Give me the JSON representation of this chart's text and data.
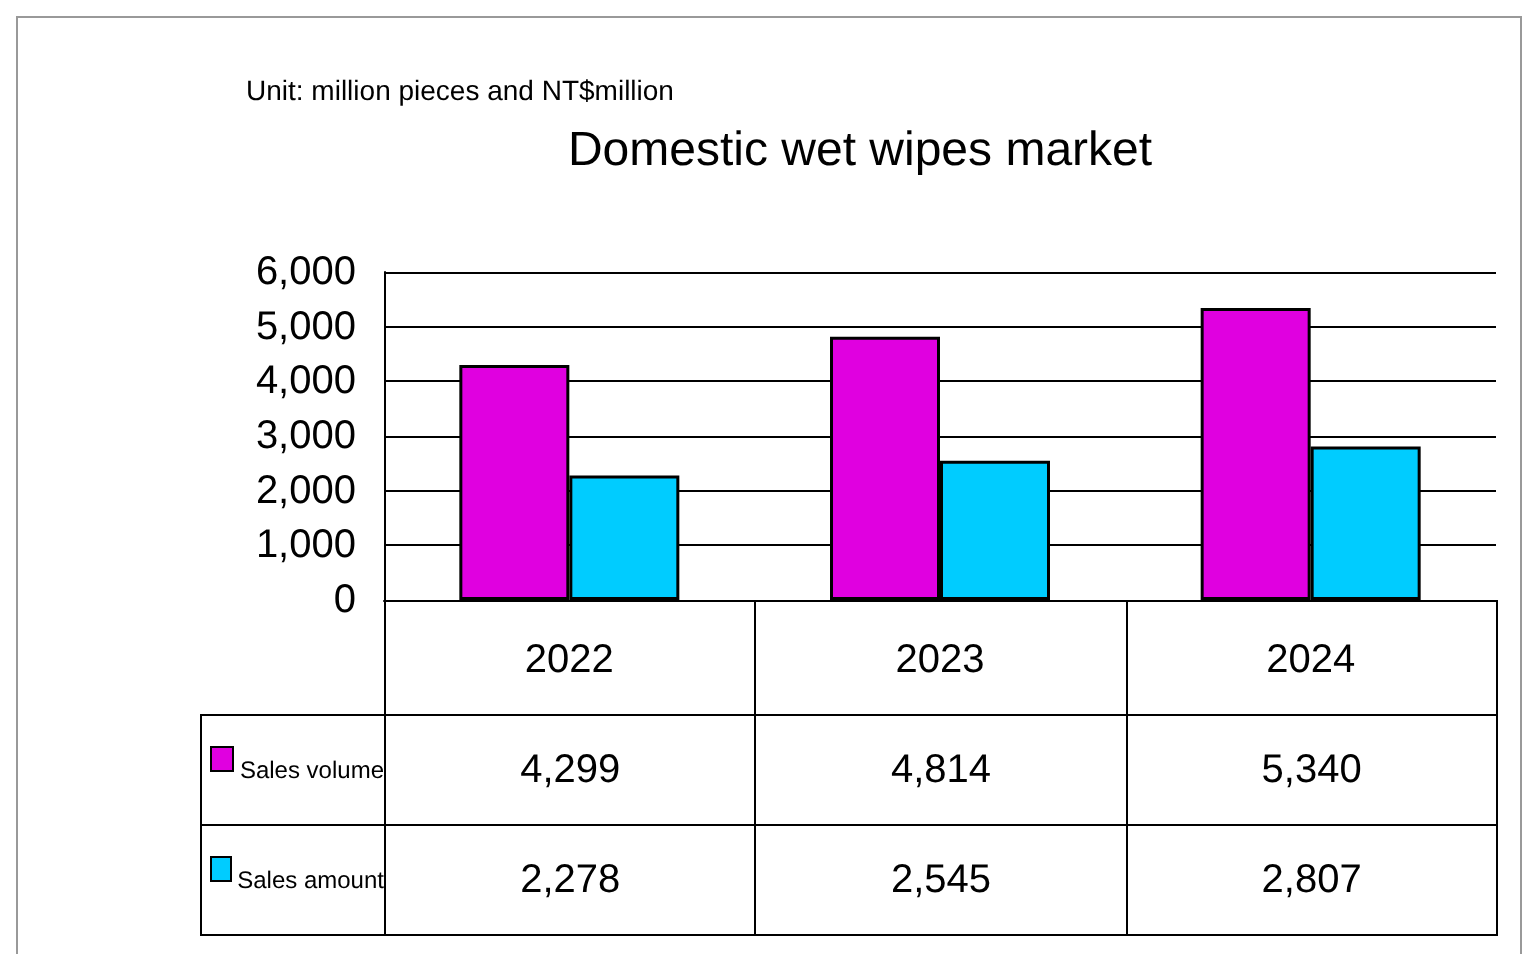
{
  "chart_data": {
    "type": "bar",
    "title": "Domestic wet wipes market",
    "subtitle": "Unit: million pieces and NT$million",
    "categories": [
      "2022",
      "2023",
      "2024"
    ],
    "series": [
      {
        "name": "Sales volume",
        "color": "#e000e0",
        "values": [
          4299,
          4814,
          5340
        ],
        "value_labels": [
          "4,299",
          "4,814",
          "5,340"
        ]
      },
      {
        "name": "Sales amount",
        "color": "#00ccff",
        "values": [
          2278,
          2545,
          2807
        ],
        "value_labels": [
          "2,278",
          "2,545",
          "2,807"
        ]
      }
    ],
    "ylim": [
      0,
      6000
    ],
    "yticks": [
      0,
      {
        "value": 1000,
        "label": "1,000"
      },
      {
        "value": 2000,
        "label": "2,000"
      },
      {
        "value": 3000,
        "label": "3,000"
      },
      {
        "value": 4000,
        "label": "4,000"
      },
      {
        "value": 5000,
        "label": "5,000"
      },
      {
        "value": 6000,
        "label": "6,000"
      }
    ],
    "grid": "y",
    "legend": "bottom"
  }
}
